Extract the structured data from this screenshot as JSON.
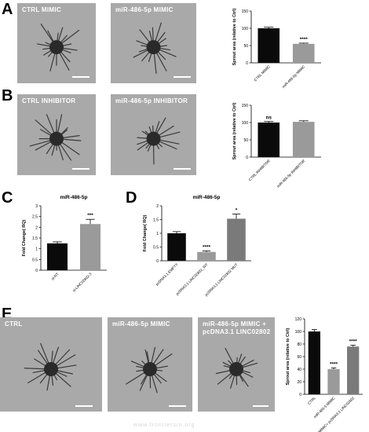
{
  "panels": {
    "A": {
      "letter": "A",
      "images": [
        {
          "label": "CTRL MIMIC"
        },
        {
          "label": "miR-486-5p MIMIC"
        }
      ]
    },
    "B": {
      "letter": "B",
      "images": [
        {
          "label": "CTRL INHIBITOR"
        },
        {
          "label": "miR-486-5p INHIBITOR"
        }
      ]
    },
    "C": {
      "letter": "C"
    },
    "D": {
      "letter": "D"
    },
    "E": {
      "letter": "E",
      "images": [
        {
          "label": "CTRL"
        },
        {
          "label": "miR-486-5p MIMIC"
        },
        {
          "label": "miR-486-5p MIMIC +\npcDNA3.1 LINC02802"
        }
      ]
    }
  },
  "footer_text": "www.frontiersin.org",
  "colors": {
    "black_bar": "#0a0a0a",
    "gray_bar": "#9a9a9a",
    "mid_gray_bar": "#7a7a7a",
    "micrograph_bg": "#a9a9a9"
  },
  "chart_data": [
    {
      "id": "A",
      "type": "bar",
      "title": "",
      "ylabel": "Sprout area (relative to Ctrl)",
      "xlabel": "",
      "ylim": [
        0,
        150
      ],
      "yticks": [
        0,
        50,
        100,
        150
      ],
      "categories": [
        "CTRL MIMIC",
        "miR-486-5p MIMIC"
      ],
      "values": [
        100,
        55
      ],
      "errors": [
        3,
        2
      ],
      "colors": [
        "#0a0a0a",
        "#9a9a9a"
      ],
      "annotations": [
        "",
        "****"
      ],
      "grid": false
    },
    {
      "id": "B",
      "type": "bar",
      "title": "",
      "ylabel": "Sprout area (relative to Ctrl)",
      "xlabel": "",
      "ylim": [
        0,
        150
      ],
      "yticks": [
        0,
        50,
        100,
        150
      ],
      "categories": [
        "CTRL INHIBITOR",
        "miR-486-5p INHIBITOR"
      ],
      "values": [
        100,
        102
      ],
      "errors": [
        3,
        3
      ],
      "colors": [
        "#0a0a0a",
        "#9a9a9a"
      ],
      "annotations": [
        "ns",
        ""
      ],
      "grid": false
    },
    {
      "id": "C",
      "type": "bar",
      "title": "miR-486-5p",
      "ylabel": "Fold Change( RQ)",
      "xlabel": "",
      "ylim": [
        0,
        3.0
      ],
      "yticks": [
        0,
        0.5,
        1.0,
        1.5,
        2.0,
        2.5,
        3.0
      ],
      "categories": [
        "si-NT",
        "si-LINC02802-3"
      ],
      "values": [
        1.25,
        2.15
      ],
      "errors": [
        0.07,
        0.22
      ],
      "colors": [
        "#0a0a0a",
        "#9a9a9a"
      ],
      "annotations": [
        "",
        "***"
      ],
      "grid": false
    },
    {
      "id": "D",
      "type": "bar",
      "title": "miR-486-5p",
      "ylabel": "Fold Change( RQ)",
      "xlabel": "",
      "ylim": [
        0,
        2.0
      ],
      "yticks": [
        0,
        0.5,
        1.0,
        1.5,
        2.0
      ],
      "categories": [
        "pcDNA3.1 EMPTY",
        "pcDNA3.1 LINC02802_WT",
        "pcDNA3.1 LINC02802 MUT"
      ],
      "values": [
        1.0,
        0.32,
        1.53
      ],
      "errors": [
        0.06,
        0.04,
        0.17
      ],
      "colors": [
        "#0a0a0a",
        "#9a9a9a",
        "#7a7a7a"
      ],
      "annotations": [
        "",
        "****",
        "*"
      ],
      "grid": false
    },
    {
      "id": "E",
      "type": "bar",
      "title": "",
      "ylabel": "Sprout area (relative to Ctrl)",
      "xlabel": "",
      "ylim": [
        0,
        120
      ],
      "yticks": [
        0,
        20,
        40,
        60,
        80,
        100,
        120
      ],
      "categories": [
        "CTRL",
        "miR-486-5 MIMIC",
        "miR-486-5p MIMIC+ pcDNA3.1 LINC02802"
      ],
      "values": [
        100,
        40,
        76
      ],
      "errors": [
        3,
        2,
        2
      ],
      "colors": [
        "#0a0a0a",
        "#9a9a9a",
        "#7a7a7a"
      ],
      "annotations": [
        "",
        "****",
        "****"
      ],
      "grid": false
    }
  ]
}
